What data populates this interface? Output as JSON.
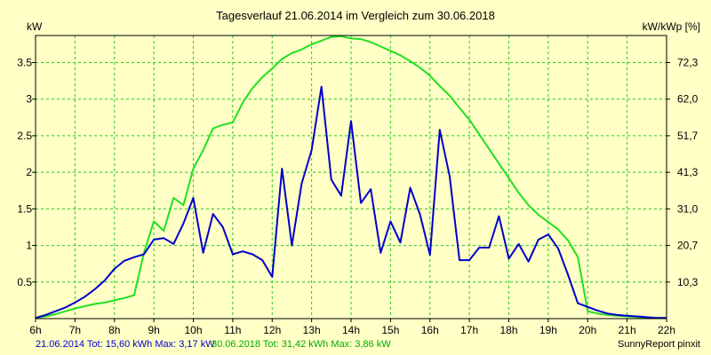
{
  "title": "Tagesverlauf 21.06.2014 im Vergleich zum 30.06.2018",
  "left_axis_unit": "kW",
  "right_axis_unit": "kW/kWp [%]",
  "footer": {
    "series1_label": "21.06.2014",
    "series1_stats": "Tot: 15,60 kWh Max: 3,17 kW",
    "series2_label": "30.06.2018",
    "series2_stats": "Tot: 31,42 kWh Max: 3,86 kW",
    "credit": "SunnyReport pinxit"
  },
  "colors": {
    "background": "#ffffc6",
    "plot_background": "#ffffc6",
    "grid": "#22cc22",
    "series1": "#0000cc",
    "series2": "#22e022",
    "footer_series1": "#0000cc",
    "footer_series2": "#00aa00"
  },
  "chart_data": {
    "type": "line",
    "title": "Tagesverlauf 21.06.2014 im Vergleich zum 30.06.2018",
    "xlabel": "",
    "ylabel": "kW",
    "y2label": "kW/kWp [%]",
    "xlim": [
      6,
      22
    ],
    "ylim": [
      0,
      3.87
    ],
    "x_ticks": [
      "6h",
      "7h",
      "8h",
      "9h",
      "10h",
      "11h",
      "12h",
      "13h",
      "14h",
      "15h",
      "16h",
      "17h",
      "18h",
      "19h",
      "20h",
      "21h",
      "22h"
    ],
    "y_ticks": [
      "0.5",
      "1",
      "1.5",
      "2",
      "2.5",
      "3",
      "3.5"
    ],
    "y2_ticks": [
      "10,3",
      "20,7",
      "31,0",
      "41,3",
      "51,7",
      "62,0",
      "72,3"
    ],
    "grid": true,
    "series": [
      {
        "name": "21.06.2014",
        "x": [
          6.0,
          6.25,
          6.5,
          6.75,
          7.0,
          7.25,
          7.5,
          7.75,
          8.0,
          8.25,
          8.5,
          8.75,
          9.0,
          9.25,
          9.5,
          9.75,
          10.0,
          10.25,
          10.5,
          10.75,
          11.0,
          11.25,
          11.5,
          11.75,
          12.0,
          12.25,
          12.5,
          12.75,
          13.0,
          13.25,
          13.5,
          13.75,
          14.0,
          14.25,
          14.5,
          14.75,
          15.0,
          15.25,
          15.5,
          15.75,
          16.0,
          16.25,
          16.5,
          16.75,
          17.0,
          17.25,
          17.5,
          17.75,
          18.0,
          18.25,
          18.5,
          18.75,
          19.0,
          19.25,
          19.5,
          19.75,
          20.0,
          20.25,
          20.5,
          20.75,
          21.0,
          21.25,
          21.5,
          21.75,
          22.0
        ],
        "y": [
          0.01,
          0.05,
          0.1,
          0.15,
          0.22,
          0.3,
          0.4,
          0.52,
          0.68,
          0.79,
          0.84,
          0.88,
          1.08,
          1.1,
          1.02,
          1.3,
          1.65,
          0.9,
          1.43,
          1.25,
          0.88,
          0.92,
          0.88,
          0.8,
          0.57,
          2.05,
          1.0,
          1.85,
          2.3,
          3.17,
          1.9,
          1.68,
          2.7,
          1.58,
          1.77,
          0.9,
          1.33,
          1.04,
          1.79,
          1.42,
          0.87,
          2.58,
          1.95,
          0.8,
          0.8,
          0.97,
          0.97,
          1.4,
          0.82,
          1.02,
          0.78,
          1.08,
          1.15,
          0.96,
          0.6,
          0.21,
          0.16,
          0.11,
          0.07,
          0.05,
          0.04,
          0.03,
          0.02,
          0.01,
          0.01
        ]
      },
      {
        "name": "30.06.2018",
        "x": [
          6.0,
          6.25,
          6.5,
          6.75,
          7.0,
          7.25,
          7.5,
          7.75,
          8.0,
          8.25,
          8.5,
          8.75,
          9.0,
          9.25,
          9.5,
          9.75,
          10.0,
          10.25,
          10.5,
          10.75,
          11.0,
          11.25,
          11.5,
          11.75,
          12.0,
          12.25,
          12.5,
          12.75,
          13.0,
          13.25,
          13.5,
          13.75,
          14.0,
          14.25,
          14.5,
          14.75,
          15.0,
          15.25,
          15.5,
          15.75,
          16.0,
          16.25,
          16.5,
          16.75,
          17.0,
          17.25,
          17.5,
          17.75,
          18.0,
          18.25,
          18.5,
          18.75,
          19.0,
          19.25,
          19.5,
          19.75,
          20.0,
          20.25,
          20.5,
          20.75,
          21.0,
          21.25,
          21.5,
          21.75,
          22.0
        ],
        "y": [
          0.01,
          0.03,
          0.06,
          0.1,
          0.14,
          0.17,
          0.2,
          0.22,
          0.25,
          0.28,
          0.32,
          0.9,
          1.33,
          1.2,
          1.65,
          1.55,
          2.05,
          2.3,
          2.6,
          2.65,
          2.68,
          2.95,
          3.15,
          3.3,
          3.42,
          3.55,
          3.63,
          3.68,
          3.75,
          3.8,
          3.85,
          3.86,
          3.83,
          3.82,
          3.78,
          3.72,
          3.66,
          3.6,
          3.52,
          3.43,
          3.32,
          3.18,
          3.05,
          2.88,
          2.72,
          2.52,
          2.32,
          2.12,
          1.92,
          1.72,
          1.55,
          1.42,
          1.32,
          1.22,
          1.07,
          0.84,
          0.1,
          0.07,
          0.05,
          0.04,
          0.03,
          0.02,
          0.01,
          0.01,
          0.01
        ]
      }
    ]
  }
}
